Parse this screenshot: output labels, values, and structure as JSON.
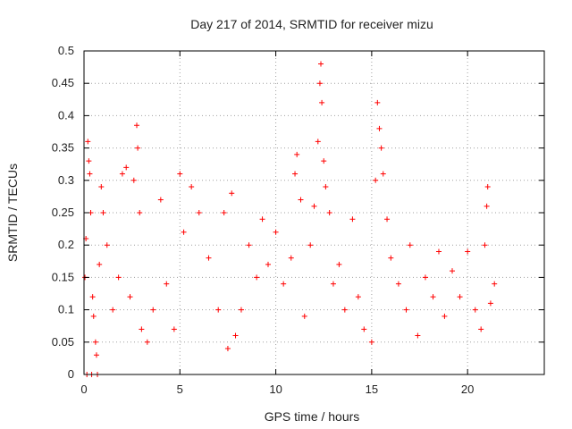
{
  "chart_data": {
    "type": "scatter",
    "title": "Day 217 of 2014, SRMTID for receiver mizu",
    "xlabel": "GPS time / hours",
    "ylabel": "SRMTID / TECUs",
    "xlim": [
      0,
      24
    ],
    "ylim": [
      0,
      0.5
    ],
    "x_ticks": [
      0,
      5,
      10,
      15,
      20
    ],
    "x_tick_labels": [
      "0",
      "5",
      "10",
      "15",
      "20"
    ],
    "y_ticks": [
      0,
      0.05,
      0.1,
      0.15,
      0.2,
      0.25,
      0.3,
      0.35,
      0.4,
      0.45,
      0.5
    ],
    "y_tick_labels": [
      "0",
      "0.05",
      "0.1",
      "0.15",
      "0.2",
      "0.25",
      "0.3",
      "0.35",
      "0.4",
      "0.45",
      "0.5"
    ],
    "grid": true,
    "marker": "+",
    "color": "#ff0000",
    "series": [
      {
        "name": "SRMTID",
        "x_range": [
          0,
          21.5
        ],
        "points": [
          [
            0.05,
            0.15
          ],
          [
            0.1,
            0.21
          ],
          [
            0.15,
            0.0
          ],
          [
            0.2,
            0.36
          ],
          [
            0.25,
            0.33
          ],
          [
            0.3,
            0.31
          ],
          [
            0.35,
            0.25
          ],
          [
            0.4,
            0.0
          ],
          [
            0.45,
            0.12
          ],
          [
            0.5,
            0.09
          ],
          [
            0.6,
            0.05
          ],
          [
            0.65,
            0.03
          ],
          [
            0.7,
            0.0
          ],
          [
            0.8,
            0.17
          ],
          [
            0.9,
            0.29
          ],
          [
            1.0,
            0.25
          ],
          [
            1.2,
            0.2
          ],
          [
            1.5,
            0.1
          ],
          [
            1.8,
            0.15
          ],
          [
            2.0,
            0.31
          ],
          [
            2.2,
            0.32
          ],
          [
            2.4,
            0.12
          ],
          [
            2.6,
            0.3
          ],
          [
            2.75,
            0.385
          ],
          [
            2.8,
            0.35
          ],
          [
            2.9,
            0.25
          ],
          [
            3.0,
            0.07
          ],
          [
            3.3,
            0.05
          ],
          [
            3.6,
            0.1
          ],
          [
            4.0,
            0.27
          ],
          [
            4.3,
            0.14
          ],
          [
            4.7,
            0.07
          ],
          [
            5.0,
            0.31
          ],
          [
            5.2,
            0.22
          ],
          [
            5.6,
            0.29
          ],
          [
            6.0,
            0.25
          ],
          [
            6.5,
            0.18
          ],
          [
            7.0,
            0.1
          ],
          [
            7.3,
            0.25
          ],
          [
            7.5,
            0.04
          ],
          [
            7.7,
            0.28
          ],
          [
            7.9,
            0.06
          ],
          [
            8.2,
            0.1
          ],
          [
            8.6,
            0.2
          ],
          [
            9.0,
            0.15
          ],
          [
            9.3,
            0.24
          ],
          [
            9.6,
            0.17
          ],
          [
            10.0,
            0.22
          ],
          [
            10.4,
            0.14
          ],
          [
            10.8,
            0.18
          ],
          [
            11.0,
            0.31
          ],
          [
            11.1,
            0.34
          ],
          [
            11.3,
            0.27
          ],
          [
            11.5,
            0.09
          ],
          [
            11.8,
            0.2
          ],
          [
            12.0,
            0.26
          ],
          [
            12.2,
            0.36
          ],
          [
            12.3,
            0.45
          ],
          [
            12.35,
            0.48
          ],
          [
            12.4,
            0.42
          ],
          [
            12.5,
            0.33
          ],
          [
            12.6,
            0.29
          ],
          [
            12.8,
            0.25
          ],
          [
            13.0,
            0.14
          ],
          [
            13.3,
            0.17
          ],
          [
            13.6,
            0.1
          ],
          [
            14.0,
            0.24
          ],
          [
            14.3,
            0.12
          ],
          [
            14.6,
            0.07
          ],
          [
            15.0,
            0.05
          ],
          [
            15.2,
            0.3
          ],
          [
            15.3,
            0.42
          ],
          [
            15.4,
            0.38
          ],
          [
            15.5,
            0.35
          ],
          [
            15.6,
            0.31
          ],
          [
            15.8,
            0.24
          ],
          [
            16.0,
            0.18
          ],
          [
            16.4,
            0.14
          ],
          [
            16.8,
            0.1
          ],
          [
            17.0,
            0.2
          ],
          [
            17.4,
            0.06
          ],
          [
            17.8,
            0.15
          ],
          [
            18.2,
            0.12
          ],
          [
            18.5,
            0.19
          ],
          [
            18.8,
            0.09
          ],
          [
            19.2,
            0.16
          ],
          [
            19.6,
            0.12
          ],
          [
            20.0,
            0.19
          ],
          [
            20.4,
            0.1
          ],
          [
            20.7,
            0.07
          ],
          [
            20.9,
            0.2
          ],
          [
            21.0,
            0.26
          ],
          [
            21.05,
            0.29
          ],
          [
            21.2,
            0.11
          ],
          [
            21.4,
            0.14
          ]
        ]
      }
    ]
  }
}
